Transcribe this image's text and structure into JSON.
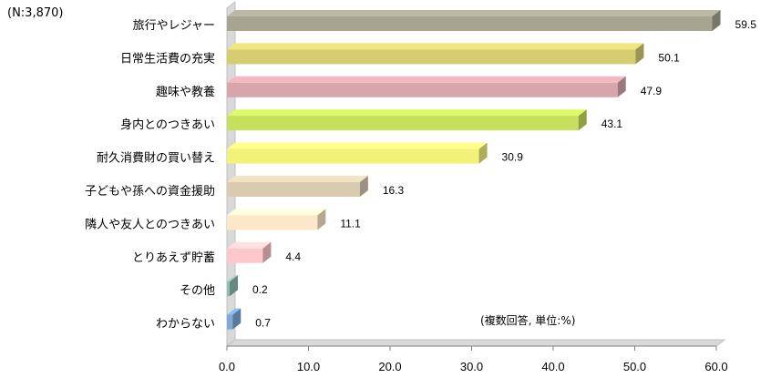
{
  "chart_data": {
    "type": "bar",
    "orientation": "horizontal",
    "sample_note": "(N:3,870)",
    "unit_note": "(複数回答, 単位:%)",
    "categories": [
      "旅行やレジャー",
      "日常生活費の充実",
      "趣味や教養",
      "身内とのつきあい",
      "耐久消費財の買い替え",
      "子どもや孫への資金援助",
      "隣人や友人とのつきあい",
      "とりあえず貯蓄",
      "その他",
      "わからない"
    ],
    "values": [
      59.5,
      50.1,
      47.9,
      43.1,
      30.9,
      16.3,
      11.1,
      4.4,
      0.2,
      0.7
    ],
    "value_labels": [
      "59.5",
      "50.1",
      "47.9",
      "43.1",
      "30.9",
      "16.3",
      "11.1",
      "4.4",
      "0.2",
      "0.7"
    ],
    "colors": [
      "#a5a592",
      "#d5ce70",
      "#d9a5ad",
      "#c4e05c",
      "#f2f27a",
      "#d8cbb0",
      "#fce8c8",
      "#fbc7c9",
      "#8fbdb4",
      "#7fa9d6"
    ],
    "xlim": [
      0,
      60
    ],
    "xticks": [
      "0.0",
      "10.0",
      "20.0",
      "30.0",
      "40.0",
      "50.0",
      "60.0"
    ],
    "grid": false,
    "legend": "none"
  }
}
